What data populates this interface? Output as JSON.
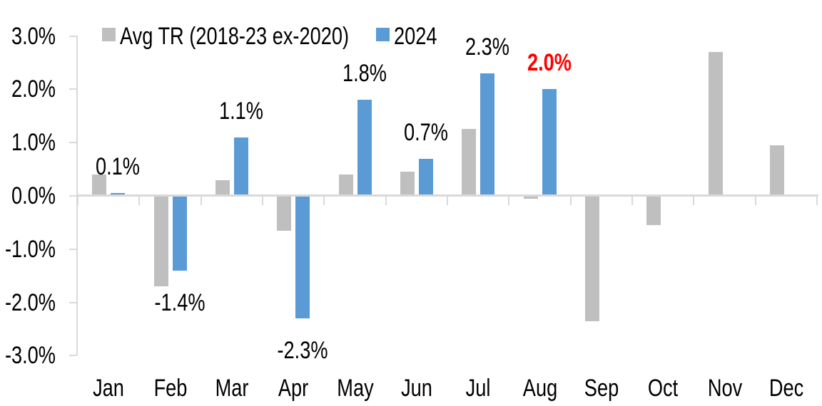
{
  "page": {
    "background": "#FFFFFF"
  },
  "chart_data": {
    "type": "bar",
    "title": "",
    "xlabel": "",
    "ylabel": "",
    "unit": "%",
    "categories": [
      "Jan",
      "Feb",
      "Mar",
      "Apr",
      "May",
      "Jun",
      "Jul",
      "Aug",
      "Sep",
      "Oct",
      "Nov",
      "Dec"
    ],
    "ylim": [
      -3.0,
      3.0
    ],
    "y_tick_labels": [
      "3.0%",
      "2.0%",
      "1.0%",
      "0.0%",
      "-1.0%",
      "-2.0%",
      "-3.0%"
    ],
    "y_tick_values": [
      3.0,
      2.0,
      1.0,
      0.0,
      -1.0,
      -2.0,
      -3.0
    ],
    "grid": false,
    "legend_position": "top",
    "axis_color": "#D9D9D9",
    "series": [
      {
        "name": "Avg TR (2018-23 ex-2020)",
        "color": "#BFBFBF",
        "values": [
          0.4,
          -1.7,
          0.3,
          -0.65,
          0.4,
          0.45,
          1.25,
          -0.05,
          -2.35,
          -0.55,
          2.7,
          0.95
        ]
      },
      {
        "name": "2024",
        "color": "#5B9BD5",
        "values": [
          0.05,
          -1.4,
          1.1,
          -2.3,
          1.8,
          0.7,
          2.3,
          2.0,
          null,
          null,
          null,
          null
        ],
        "data_labels": [
          {
            "text": "0.1%",
            "color": "#000000",
            "bold": false
          },
          {
            "text": "-1.4%",
            "color": "#000000",
            "bold": false
          },
          {
            "text": "1.1%",
            "color": "#000000",
            "bold": false
          },
          {
            "text": "-2.3%",
            "color": "#000000",
            "bold": false
          },
          {
            "text": "1.8%",
            "color": "#000000",
            "bold": false
          },
          {
            "text": "0.7%",
            "color": "#000000",
            "bold": false
          },
          {
            "text": "2.3%",
            "color": "#000000",
            "bold": false
          },
          {
            "text": "2.0%",
            "color": "#FF0000",
            "bold": true
          },
          null,
          null,
          null,
          null
        ]
      }
    ]
  }
}
